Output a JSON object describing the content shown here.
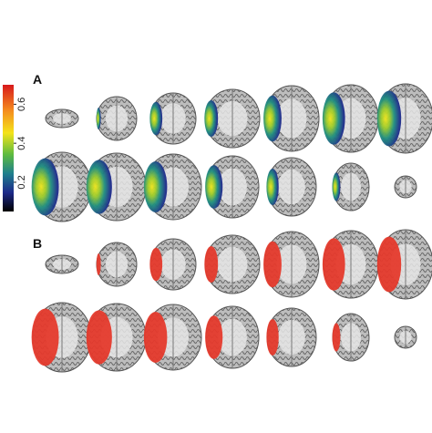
{
  "panels": [
    {
      "label": "A"
    },
    {
      "label": "B"
    }
  ],
  "colorbar": {
    "lim": [
      0.05,
      0.7
    ],
    "ticks": [
      0.2,
      0.4,
      0.6
    ]
  }
}
